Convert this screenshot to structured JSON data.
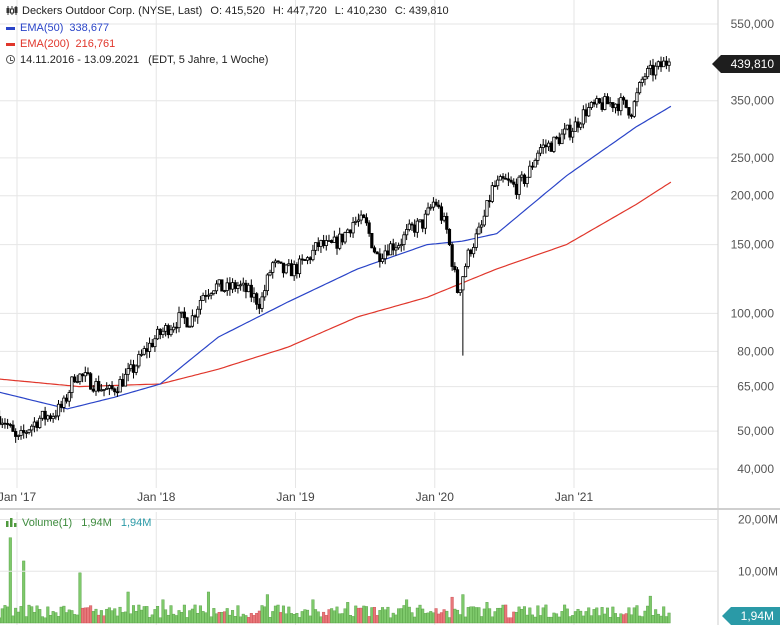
{
  "header": {
    "title": "Deckers Outdoor Corp. (NYSE, Last)",
    "open": "O: 415,520",
    "high": "H: 447,720",
    "low": "L: 410,230",
    "close": "C: 439,810",
    "ema50_label": "EMA(50)",
    "ema50_value": "338,677",
    "ema200_label": "EMA(200)",
    "ema200_value": "216,761",
    "range": "14.11.2016 - 13.09.2021",
    "range_note": "(EDT, 5 Jahre, 1 Woche)"
  },
  "volume_header": {
    "label": "Volume(1)",
    "value1": "1,94M",
    "value2": "1,94M"
  },
  "last_price_badge": "439,810",
  "last_volume_badge": "1,94M",
  "colors": {
    "candle": "#000000",
    "ema50": "#2a44c8",
    "ema200": "#e0362b",
    "volume_up": "#7ec96b",
    "volume_down": "#e8787b",
    "grid": "#e6e6e6",
    "badge_price": "#1e1e1e",
    "badge_volume": "#2a9aa7"
  },
  "chart_data": [
    {
      "type": "candlestick",
      "title": "Deckers Outdoor Corp. (NYSE, Last)",
      "scale": "log",
      "ylim": [
        35,
        600
      ],
      "y_ticks": [
        550000,
        350000,
        250000,
        200000,
        150000,
        100000,
        80000,
        65000,
        50000,
        40000
      ],
      "y_tick_labels": [
        "550,000",
        "350,000",
        "250,000",
        "200,000",
        "150,000",
        "100,000",
        "80,000",
        "65,000",
        "50,000",
        "40,000"
      ],
      "x_tick_labels": [
        "Jan '17",
        "Jan '18",
        "Jan '19",
        "Jan '20",
        "Jan '21"
      ],
      "x_ticks": [
        "2017-01",
        "2018-01",
        "2019-01",
        "2020-01",
        "2021-01"
      ],
      "x_range": [
        "2016-11",
        "2021-09"
      ],
      "price_anchors": [
        [
          "2016-11",
          56
        ],
        [
          "2016-12",
          53
        ],
        [
          "2017-01",
          47
        ],
        [
          "2017-02",
          51
        ],
        [
          "2017-03",
          54
        ],
        [
          "2017-04",
          55
        ],
        [
          "2017-05",
          58
        ],
        [
          "2017-06",
          70
        ],
        [
          "2017-07",
          68
        ],
        [
          "2017-08",
          65
        ],
        [
          "2017-09",
          63
        ],
        [
          "2017-10",
          67
        ],
        [
          "2017-11",
          72
        ],
        [
          "2017-12",
          80
        ],
        [
          "2018-01",
          87
        ],
        [
          "2018-02",
          92
        ],
        [
          "2018-03",
          97
        ],
        [
          "2018-04",
          96
        ],
        [
          "2018-05",
          112
        ],
        [
          "2018-06",
          118
        ],
        [
          "2018-07",
          115
        ],
        [
          "2018-08",
          118
        ],
        [
          "2018-09",
          113
        ],
        [
          "2018-10",
          106
        ],
        [
          "2018-11",
          134
        ],
        [
          "2018-12",
          128
        ],
        [
          "2019-01",
          130
        ],
        [
          "2019-02",
          137
        ],
        [
          "2019-03",
          150
        ],
        [
          "2019-04",
          148
        ],
        [
          "2019-05",
          156
        ],
        [
          "2019-06",
          172
        ],
        [
          "2019-07",
          171
        ],
        [
          "2019-08",
          140
        ],
        [
          "2019-09",
          148
        ],
        [
          "2019-10",
          152
        ],
        [
          "2019-11",
          165
        ],
        [
          "2019-12",
          170
        ],
        [
          "2020-01",
          195
        ],
        [
          "2020-02",
          165
        ],
        [
          "2020-03",
          113
        ],
        [
          "2020-04",
          145
        ],
        [
          "2020-05",
          165
        ],
        [
          "2020-06",
          210
        ],
        [
          "2020-07",
          218
        ],
        [
          "2020-08",
          210
        ],
        [
          "2020-09",
          225
        ],
        [
          "2020-10",
          265
        ],
        [
          "2020-11",
          270
        ],
        [
          "2020-12",
          285
        ],
        [
          "2021-01",
          300
        ],
        [
          "2021-02",
          330
        ],
        [
          "2021-03",
          340
        ],
        [
          "2021-04",
          345
        ],
        [
          "2021-05",
          345
        ],
        [
          "2021-06",
          330
        ],
        [
          "2021-07",
          405
        ],
        [
          "2021-08",
          420
        ],
        [
          "2021-09",
          440
        ]
      ],
      "series": [
        {
          "name": "EMA(50)",
          "values": [
            [
              "2016-11",
              63
            ],
            [
              "2017-05",
              57
            ],
            [
              "2017-09",
              61
            ],
            [
              "2018-01",
              66
            ],
            [
              "2018-06",
              87
            ],
            [
              "2018-12",
              107
            ],
            [
              "2019-06",
              130
            ],
            [
              "2019-12",
              150
            ],
            [
              "2020-03",
              153
            ],
            [
              "2020-06",
              160
            ],
            [
              "2020-12",
              225
            ],
            [
              "2021-06",
              300
            ],
            [
              "2021-09",
              338.677
            ]
          ]
        },
        {
          "name": "EMA(200)",
          "values": [
            [
              "2016-11",
              68
            ],
            [
              "2017-06",
              65
            ],
            [
              "2018-01",
              66
            ],
            [
              "2018-06",
              72
            ],
            [
              "2018-12",
              82
            ],
            [
              "2019-06",
              98
            ],
            [
              "2019-12",
              110
            ],
            [
              "2020-06",
              130
            ],
            [
              "2020-12",
              150
            ],
            [
              "2021-06",
              190
            ],
            [
              "2021-09",
              216.761
            ]
          ]
        }
      ]
    },
    {
      "type": "bar",
      "title": "Volume(1)",
      "y_ticks": [
        10,
        20
      ],
      "y_tick_labels": [
        "10,00M",
        "20,00M"
      ],
      "ylim": [
        0,
        22
      ],
      "spikes": [
        [
          "2016-12",
          16.5
        ],
        [
          "2017-01",
          12
        ],
        [
          "2017-06",
          9.7
        ],
        [
          "2017-10",
          6
        ],
        [
          "2018-01",
          4.5
        ],
        [
          "2018-05",
          6
        ],
        [
          "2018-10",
          5.5
        ],
        [
          "2019-02",
          4.5
        ],
        [
          "2019-05",
          4
        ],
        [
          "2019-10",
          4.5
        ],
        [
          "2020-02",
          5
        ],
        [
          "2020-03",
          5.5
        ],
        [
          "2020-05",
          4
        ],
        [
          "2020-10",
          3.5
        ],
        [
          "2021-07",
          5.2
        ]
      ],
      "baseline_range": [
        1,
        3.5
      ]
    }
  ]
}
